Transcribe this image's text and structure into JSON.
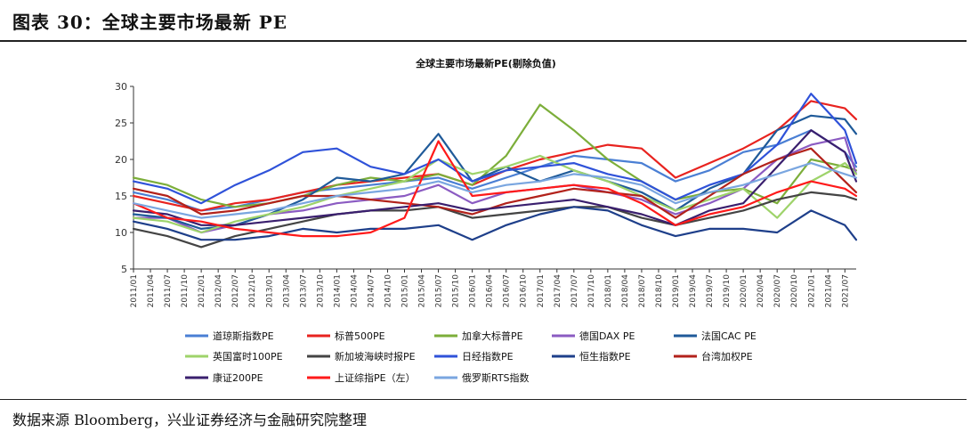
{
  "figure": {
    "title": "图表 30：全球主要市场最新 PE",
    "source": "数据来源 Bloomberg，兴业证券经济与金融研究院整理"
  },
  "chart_data": {
    "type": "line",
    "title": "全球主要市场最新PE(剔除负值)",
    "xlabel": "",
    "ylabel": "",
    "ylim": [
      5,
      30
    ],
    "yticks": [
      5,
      10,
      15,
      20,
      25,
      30
    ],
    "grid": false,
    "legend_position": "bottom",
    "xtick_labels": [
      "2011/01",
      "2011/04",
      "2011/07",
      "2011/10",
      "2012/01",
      "2012/04",
      "2012/07",
      "2012/10",
      "2013/01",
      "2013/04",
      "2013/07",
      "2013/10",
      "2014/01",
      "2014/04",
      "2014/07",
      "2014/10",
      "2015/01",
      "2015/04",
      "2015/07",
      "2015/10",
      "2016/01",
      "2016/04",
      "2016/07",
      "2016/10",
      "2017/01",
      "2017/04",
      "2017/07",
      "2017/10",
      "2018/01",
      "2018/04",
      "2018/07",
      "2018/10",
      "2019/01",
      "2019/04",
      "2019/07",
      "2019/10",
      "2020/01",
      "2020/04",
      "2020/07",
      "2020/10",
      "2021/01",
      "2021/04",
      "2021/07"
    ],
    "x": [
      "2011/01",
      "2011/07",
      "2012/01",
      "2012/07",
      "2013/01",
      "2013/07",
      "2014/01",
      "2014/07",
      "2015/01",
      "2015/07",
      "2016/01",
      "2016/07",
      "2017/01",
      "2017/07",
      "2018/01",
      "2018/07",
      "2019/01",
      "2019/07",
      "2020/01",
      "2020/07",
      "2021/01",
      "2021/07",
      "2021/09"
    ],
    "series": [
      {
        "name": "道琼斯指数PE",
        "color": "#4a7fd4",
        "values": [
          15.5,
          14.5,
          13.0,
          13.5,
          14.5,
          15.5,
          16.0,
          16.5,
          17.0,
          17.5,
          16.0,
          17.5,
          19.0,
          20.5,
          20.0,
          19.5,
          17.0,
          18.5,
          21.0,
          22.0,
          24.0,
          21.0,
          19.0
        ]
      },
      {
        "name": "标普500PE",
        "color": "#e8231f",
        "values": [
          15.0,
          14.0,
          13.0,
          14.0,
          14.5,
          15.5,
          16.5,
          17.0,
          17.5,
          18.0,
          16.5,
          18.5,
          20.0,
          21.0,
          22.0,
          21.5,
          17.5,
          19.5,
          21.5,
          24.0,
          28.0,
          27.0,
          25.5
        ]
      },
      {
        "name": "加拿大标普PE",
        "color": "#7cae3a",
        "values": [
          17.5,
          16.5,
          14.5,
          13.5,
          14.0,
          15.0,
          16.5,
          17.5,
          17.0,
          18.0,
          16.5,
          20.5,
          27.5,
          24.0,
          20.0,
          17.0,
          14.5,
          15.5,
          16.0,
          14.0,
          20.0,
          19.0,
          18.5
        ]
      },
      {
        "name": "德国DAX PE",
        "color": "#8b5bc2",
        "values": [
          12.0,
          12.0,
          10.0,
          11.0,
          12.5,
          13.0,
          14.0,
          14.5,
          15.0,
          16.5,
          14.0,
          15.5,
          16.0,
          16.5,
          15.5,
          14.5,
          12.5,
          14.0,
          16.0,
          20.0,
          22.0,
          23.0,
          18.0
        ]
      },
      {
        "name": "法国CAC PE",
        "color": "#1f5a99",
        "values": [
          12.5,
          12.0,
          10.5,
          11.0,
          12.5,
          14.5,
          17.5,
          17.0,
          18.0,
          23.5,
          17.0,
          19.0,
          17.0,
          18.5,
          17.0,
          15.5,
          13.0,
          16.0,
          18.0,
          24.0,
          26.0,
          25.5,
          23.5
        ]
      },
      {
        "name": "英国富时100PE",
        "color": "#9ed36a",
        "values": [
          12.0,
          11.5,
          10.0,
          11.5,
          12.5,
          13.5,
          15.0,
          16.0,
          17.0,
          20.0,
          18.0,
          19.0,
          20.5,
          18.5,
          17.0,
          15.0,
          13.0,
          14.5,
          16.0,
          12.0,
          17.0,
          19.5,
          18.0
        ]
      },
      {
        "name": "新加坡海峡时报PE",
        "color": "#444444",
        "values": [
          10.5,
          9.5,
          8.0,
          9.5,
          10.5,
          11.5,
          12.5,
          13.0,
          13.0,
          13.5,
          12.0,
          12.5,
          13.0,
          13.5,
          13.5,
          12.0,
          11.0,
          12.0,
          13.0,
          14.5,
          15.5,
          15.0,
          14.5
        ]
      },
      {
        "name": "日经指数PE",
        "color": "#2f52d9",
        "values": [
          17.0,
          16.0,
          14.0,
          16.5,
          18.5,
          21.0,
          21.5,
          19.0,
          18.0,
          20.0,
          17.0,
          18.5,
          19.0,
          19.5,
          18.0,
          17.0,
          14.5,
          16.5,
          18.0,
          22.0,
          29.0,
          24.0,
          19.5
        ]
      },
      {
        "name": "恒生指数PE",
        "color": "#1e3f8a",
        "values": [
          11.5,
          10.5,
          9.0,
          9.0,
          9.5,
          10.5,
          10.0,
          10.5,
          10.5,
          11.0,
          9.0,
          11.0,
          12.5,
          13.5,
          13.0,
          11.0,
          9.5,
          10.5,
          10.5,
          10.0,
          13.0,
          11.0,
          9.0
        ]
      },
      {
        "name": "台湾加权PE",
        "color": "#b2221b",
        "values": [
          16.0,
          15.0,
          12.5,
          13.0,
          14.0,
          15.0,
          15.0,
          14.5,
          14.0,
          13.5,
          12.5,
          14.0,
          15.0,
          16.0,
          15.5,
          15.0,
          12.0,
          15.0,
          18.0,
          20.0,
          21.5,
          17.0,
          15.5
        ]
      },
      {
        "name": "康证200PE",
        "color": "#3a1f6e",
        "values": [
          13.0,
          12.5,
          11.0,
          11.0,
          11.5,
          12.0,
          12.5,
          13.0,
          13.5,
          14.0,
          13.0,
          13.5,
          14.0,
          14.5,
          13.5,
          12.5,
          11.0,
          13.0,
          14.0,
          19.0,
          24.0,
          21.0,
          17.0
        ]
      },
      {
        "name": "上证综指PE（左）",
        "color": "#ff1a1a",
        "values": [
          14.0,
          12.0,
          11.5,
          10.5,
          10.0,
          9.5,
          9.5,
          10.0,
          12.0,
          22.5,
          15.0,
          15.5,
          16.0,
          16.5,
          16.0,
          14.0,
          11.0,
          12.5,
          13.5,
          15.5,
          17.0,
          16.0,
          15.0
        ]
      },
      {
        "name": "俄罗斯RTS指数",
        "color": "#7aa6e0",
        "values": [
          14.0,
          13.0,
          12.0,
          12.5,
          13.0,
          14.0,
          15.0,
          15.5,
          16.0,
          17.0,
          15.5,
          16.5,
          17.0,
          18.0,
          17.5,
          16.5,
          14.0,
          15.5,
          16.5,
          18.0,
          19.5,
          18.0,
          17.5
        ]
      }
    ]
  }
}
